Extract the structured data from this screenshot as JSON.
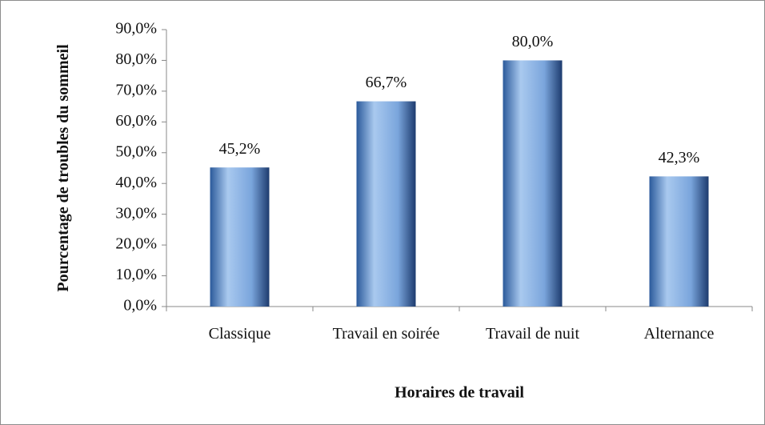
{
  "chart_data": {
    "type": "bar",
    "categories": [
      "Classique",
      "Travail en soirée",
      "Travail de nuit",
      "Alternance"
    ],
    "values": [
      45.2,
      66.7,
      80.0,
      42.3
    ],
    "value_labels": [
      "45,2%",
      "66,7%",
      "80,0%",
      "42,3%"
    ],
    "color": "#4f81bd",
    "xlabel": "Horaires de travail",
    "ylabel": "Pourcentage de troubles du sommeil",
    "ylim": [
      0,
      90
    ],
    "yticks": [
      {
        "value": 0,
        "label": "0,0%"
      },
      {
        "value": 10,
        "label": "10,0%"
      },
      {
        "value": 20,
        "label": "20,0%"
      },
      {
        "value": 30,
        "label": "30,0%"
      },
      {
        "value": 40,
        "label": "40,0%"
      },
      {
        "value": 50,
        "label": "50,0%"
      },
      {
        "value": 60,
        "label": "60,0%"
      },
      {
        "value": 70,
        "label": "70,0%"
      },
      {
        "value": 80,
        "label": "80,0%"
      },
      {
        "value": 90,
        "label": "90,0%"
      }
    ],
    "grid": false
  }
}
